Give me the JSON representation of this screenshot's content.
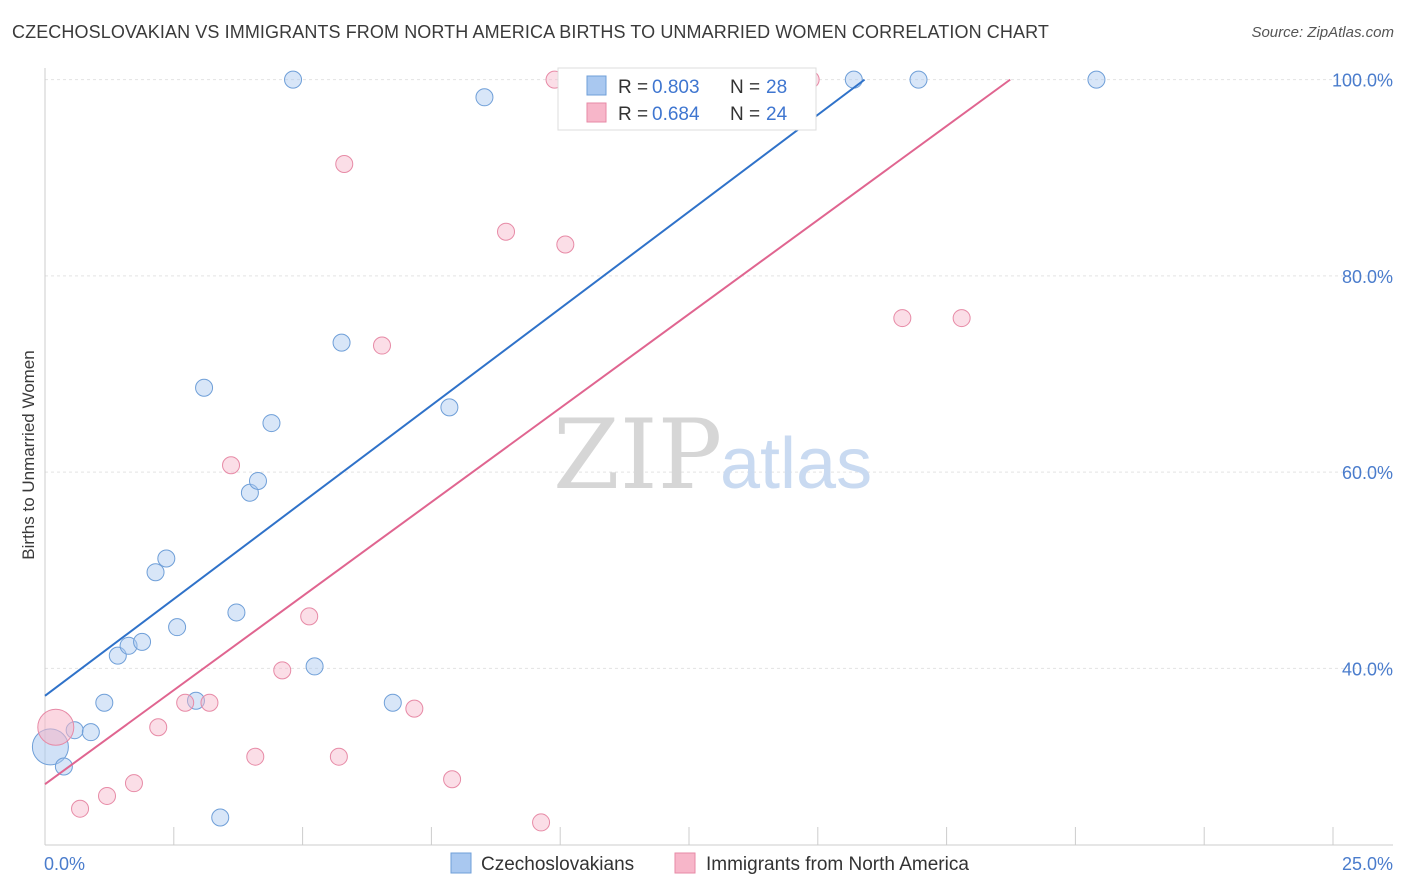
{
  "header": {
    "title": "CZECHOSLOVAKIAN VS IMMIGRANTS FROM NORTH AMERICA BIRTHS TO UNMARRIED WOMEN CORRELATION CHART",
    "source": "Source: ZipAtlas.com"
  },
  "watermark": {
    "part1": "ZIP",
    "part2": "atlas"
  },
  "legend": {
    "series": [
      {
        "r_label": "R = ",
        "r_value": "0.803",
        "n_label": "N = ",
        "n_value": "28",
        "color": "#a9c8f0"
      },
      {
        "r_label": "R = ",
        "r_value": "0.684",
        "n_label": "N = ",
        "n_value": "24",
        "color": "#f7b6c9"
      }
    ]
  },
  "bottom_legend": [
    "Czechoslovakians",
    "Immigrants from North America"
  ],
  "chart_data": {
    "type": "scatter",
    "title": "CZECHOSLOVAKIAN VS IMMIGRANTS FROM NORTH AMERICA BIRTHS TO UNMARRIED WOMEN CORRELATION CHART",
    "xlabel": "",
    "ylabel": "Births to Unmarried Women",
    "xlim": [
      0,
      25
    ],
    "ylim": [
      22,
      102
    ],
    "x_tick_labels": [
      "0.0%",
      "25.0%"
    ],
    "y_ticks": [
      40,
      60,
      80,
      100
    ],
    "y_tick_labels": [
      "40.0%",
      "60.0%",
      "80.0%",
      "100.0%"
    ],
    "grid": true,
    "legend_placement": "top-center",
    "series": [
      {
        "name": "Czechoslovakians",
        "color": "#a9c8f0",
        "stroke": "#6f9fd8",
        "trend": {
          "x": [
            0,
            15.2
          ],
          "y": [
            37.2,
            100
          ],
          "color": "#2f72c9"
        },
        "points": [
          {
            "x": 0.1,
            "y": 32.0,
            "big": true
          },
          {
            "x": 0.35,
            "y": 30.0
          },
          {
            "x": 0.55,
            "y": 33.7
          },
          {
            "x": 0.85,
            "y": 33.5
          },
          {
            "x": 1.1,
            "y": 36.5
          },
          {
            "x": 1.35,
            "y": 41.3
          },
          {
            "x": 1.55,
            "y": 42.3
          },
          {
            "x": 1.8,
            "y": 42.7
          },
          {
            "x": 2.05,
            "y": 49.8
          },
          {
            "x": 2.25,
            "y": 51.2
          },
          {
            "x": 2.45,
            "y": 44.2
          },
          {
            "x": 2.8,
            "y": 36.7
          },
          {
            "x": 2.95,
            "y": 68.6
          },
          {
            "x": 3.25,
            "y": 24.8
          },
          {
            "x": 3.55,
            "y": 45.7
          },
          {
            "x": 3.8,
            "y": 57.9
          },
          {
            "x": 3.95,
            "y": 59.1
          },
          {
            "x": 4.2,
            "y": 65.0
          },
          {
            "x": 4.6,
            "y": 100
          },
          {
            "x": 5.0,
            "y": 40.2
          },
          {
            "x": 5.5,
            "y": 73.2
          },
          {
            "x": 6.45,
            "y": 36.5
          },
          {
            "x": 7.5,
            "y": 66.6
          },
          {
            "x": 8.15,
            "y": 98.2
          },
          {
            "x": 10.7,
            "y": 100
          },
          {
            "x": 15.0,
            "y": 100
          },
          {
            "x": 16.2,
            "y": 100
          },
          {
            "x": 19.5,
            "y": 100
          }
        ]
      },
      {
        "name": "Immigrants from North America",
        "color": "#f7b6c9",
        "stroke": "#e78aa6",
        "trend": {
          "x": [
            0,
            17.9
          ],
          "y": [
            28.2,
            100
          ],
          "color": "#e06590"
        },
        "points": [
          {
            "x": 0.2,
            "y": 34.0,
            "big": true
          },
          {
            "x": 0.65,
            "y": 25.7
          },
          {
            "x": 1.15,
            "y": 27.0
          },
          {
            "x": 1.65,
            "y": 28.3
          },
          {
            "x": 2.1,
            "y": 34.0
          },
          {
            "x": 2.6,
            "y": 36.5
          },
          {
            "x": 3.05,
            "y": 36.5
          },
          {
            "x": 3.45,
            "y": 60.7
          },
          {
            "x": 3.9,
            "y": 31.0
          },
          {
            "x": 4.4,
            "y": 39.8
          },
          {
            "x": 4.9,
            "y": 45.3
          },
          {
            "x": 5.45,
            "y": 31.0
          },
          {
            "x": 5.55,
            "y": 91.4
          },
          {
            "x": 6.25,
            "y": 72.9
          },
          {
            "x": 6.85,
            "y": 35.9
          },
          {
            "x": 7.55,
            "y": 28.7
          },
          {
            "x": 8.55,
            "y": 84.5
          },
          {
            "x": 9.2,
            "y": 24.3
          },
          {
            "x": 9.45,
            "y": 100
          },
          {
            "x": 9.65,
            "y": 83.2
          },
          {
            "x": 12.3,
            "y": 100
          },
          {
            "x": 14.2,
            "y": 100
          },
          {
            "x": 15.9,
            "y": 75.7
          },
          {
            "x": 17.0,
            "y": 75.7
          }
        ]
      }
    ]
  }
}
